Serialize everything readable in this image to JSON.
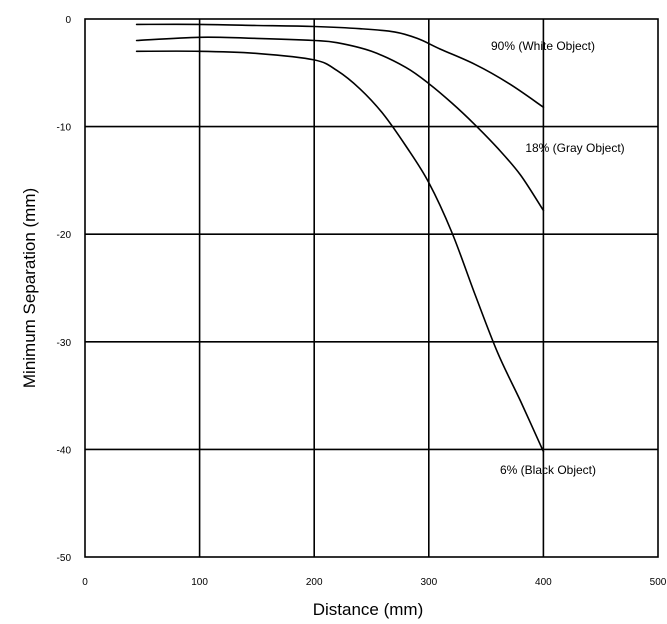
{
  "chart_data": {
    "type": "line",
    "xlabel": "Distance (mm)",
    "ylabel": "Minimum Separation (mm)",
    "xlim": [
      0,
      500
    ],
    "ylim": [
      -50,
      0
    ],
    "x_ticks": [
      0,
      100,
      200,
      300,
      400,
      500
    ],
    "y_ticks": [
      0,
      -10,
      -20,
      -30,
      -40,
      -50
    ],
    "grid": true,
    "series": [
      {
        "name": "90% (White Object)",
        "x": [
          45,
          100,
          150,
          200,
          240,
          270,
          290,
          310,
          340,
          370,
          400
        ],
        "y": [
          -0.5,
          -0.5,
          -0.6,
          -0.7,
          -0.9,
          -1.2,
          -1.8,
          -2.8,
          -4.2,
          -6.0,
          -8.2
        ]
      },
      {
        "name": "18% (Gray Object)",
        "x": [
          45,
          100,
          150,
          200,
          220,
          250,
          280,
          300,
          320,
          340,
          360,
          380,
          400
        ],
        "y": [
          -2.0,
          -1.7,
          -1.8,
          -2.0,
          -2.2,
          -3.0,
          -4.5,
          -6.0,
          -7.8,
          -9.8,
          -12.0,
          -14.5,
          -17.8
        ]
      },
      {
        "name": "6% (Black Object)",
        "x": [
          45,
          100,
          150,
          200,
          220,
          240,
          260,
          280,
          300,
          320,
          340,
          360,
          380,
          400
        ],
        "y": [
          -3.0,
          -3.0,
          -3.2,
          -3.8,
          -4.8,
          -6.5,
          -8.8,
          -11.8,
          -15.2,
          -19.8,
          -25.5,
          -31.0,
          -35.5,
          -40.2
        ]
      }
    ]
  }
}
